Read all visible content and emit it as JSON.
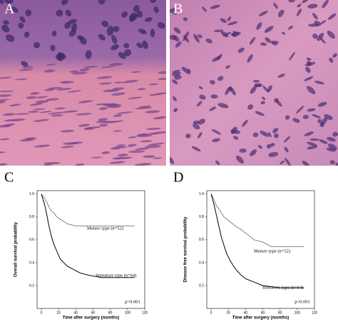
{
  "panel_labels": [
    "A",
    "B",
    "C",
    "D"
  ],
  "chart_data": [
    {
      "type": "line",
      "ylabel": "Overall survival probability",
      "xlabel": "Time after surgery (months)",
      "annotation": "p<0.001",
      "xlim": [
        -5,
        120
      ],
      "ylim": [
        0,
        1.03
      ],
      "xticks": [
        0,
        20,
        40,
        60,
        80,
        100,
        120
      ],
      "yticks": [
        {
          "value": 0.2,
          "label": "0.2"
        },
        {
          "value": 0.4,
          "label": "0.4"
        },
        {
          "value": 0.6,
          "label": "0.6"
        },
        {
          "value": 0.8,
          "label": "0.8"
        },
        {
          "value": 1.0,
          "label": "1.0"
        }
      ],
      "series": [
        {
          "name": "Mature type (n=52)",
          "color": "#000000",
          "dashed": true,
          "x": [
            0,
            2,
            4,
            6,
            8,
            10,
            12,
            15,
            18,
            22,
            26,
            30,
            35,
            40,
            45,
            60,
            80,
            108
          ],
          "values": [
            1,
            0.98,
            0.96,
            0.93,
            0.9,
            0.87,
            0.85,
            0.83,
            0.8,
            0.78,
            0.76,
            0.74,
            0.73,
            0.72,
            0.72,
            0.72,
            0.72,
            0.72
          ]
        },
        {
          "name": "Immature type (n=64)",
          "color": "#000000",
          "dashed": false,
          "x": [
            0,
            2,
            4,
            6,
            8,
            10,
            12,
            15,
            18,
            22,
            26,
            30,
            35,
            40,
            45,
            55,
            70,
            108
          ],
          "values": [
            1,
            0.95,
            0.9,
            0.83,
            0.75,
            0.68,
            0.62,
            0.55,
            0.5,
            0.43,
            0.4,
            0.37,
            0.35,
            0.33,
            0.31,
            0.29,
            0.27,
            0.27
          ]
        }
      ]
    },
    {
      "type": "line",
      "ylabel": "Disease free survival probability",
      "xlabel": "Time after surgery (months)",
      "annotation": "p<0.001",
      "xlim": [
        -5,
        120
      ],
      "ylim": [
        0,
        1.03
      ],
      "xticks": [
        0,
        20,
        40,
        60,
        80,
        100,
        120
      ],
      "yticks": [
        {
          "value": 0.2,
          "label": "0.2"
        },
        {
          "value": 0.4,
          "label": "0.4"
        },
        {
          "value": 0.6,
          "label": "0.6"
        },
        {
          "value": 0.8,
          "label": "0.8"
        },
        {
          "value": 1.0,
          "label": "1.0"
        }
      ],
      "series": [
        {
          "name": "Mature type (n=52)",
          "color": "#000000",
          "dashed": true,
          "x": [
            0,
            3,
            6,
            10,
            15,
            20,
            25,
            30,
            35,
            40,
            45,
            50,
            60,
            70,
            108
          ],
          "values": [
            1,
            0.96,
            0.9,
            0.86,
            0.8,
            0.77,
            0.74,
            0.71,
            0.69,
            0.66,
            0.63,
            0.6,
            0.58,
            0.54,
            0.54
          ]
        },
        {
          "name": "Immature type (n=64)",
          "color": "#000000",
          "dashed": false,
          "x": [
            0,
            3,
            6,
            9,
            12,
            15,
            18,
            22,
            26,
            30,
            35,
            40,
            50,
            60,
            80,
            108
          ],
          "values": [
            1,
            0.92,
            0.82,
            0.72,
            0.62,
            0.55,
            0.48,
            0.42,
            0.37,
            0.33,
            0.29,
            0.26,
            0.23,
            0.2,
            0.18,
            0.18
          ]
        }
      ]
    }
  ]
}
